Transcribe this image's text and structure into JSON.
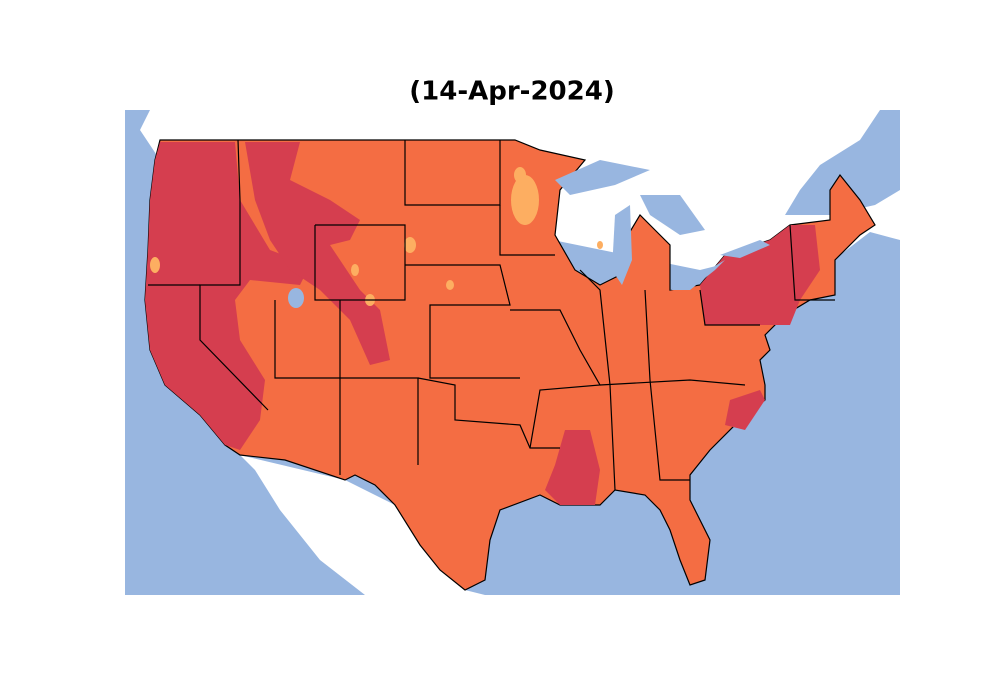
{
  "title": "(14-Apr-2024)"
}
